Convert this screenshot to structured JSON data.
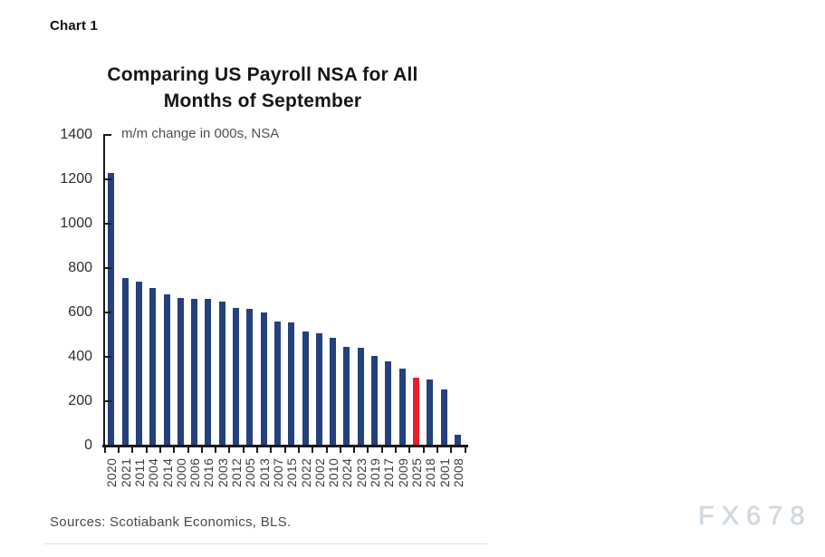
{
  "page": {
    "chart_label": "Chart 1",
    "sources": "Sources: Scotiabank Economics, BLS.",
    "watermark": "FX678"
  },
  "chart_data": {
    "type": "bar",
    "title": "Comparing US Payroll NSA for All Months of September",
    "title_lines": [
      "Comparing US Payroll NSA for All",
      "Months of September"
    ],
    "subtitle": "m/m change in 000s, NSA",
    "xlabel": "",
    "ylabel": "m/m change in 000s, NSA",
    "ylim": [
      0,
      1400
    ],
    "yticks": [
      1400,
      1200,
      1000,
      800,
      600,
      400,
      200,
      0
    ],
    "grid": false,
    "legend": null,
    "sorted": "descending by value",
    "categories": [
      "2020",
      "2021",
      "2011",
      "2004",
      "2014",
      "2000",
      "2006",
      "2016",
      "2003",
      "2012",
      "2005",
      "2013",
      "2007",
      "2015",
      "2022",
      "2002",
      "2010",
      "2024",
      "2023",
      "2019",
      "2017",
      "2009",
      "2025",
      "2018",
      "2001",
      "2008"
    ],
    "values": [
      1230,
      755,
      740,
      710,
      680,
      667,
      663,
      660,
      650,
      622,
      616,
      600,
      558,
      554,
      513,
      506,
      486,
      445,
      442,
      404,
      381,
      347,
      307,
      297,
      253,
      50
    ],
    "highlight_category": "2025",
    "bar_color": "#24417e",
    "highlight_color": "#e8202a",
    "axis_color": "#1a1a1a"
  }
}
